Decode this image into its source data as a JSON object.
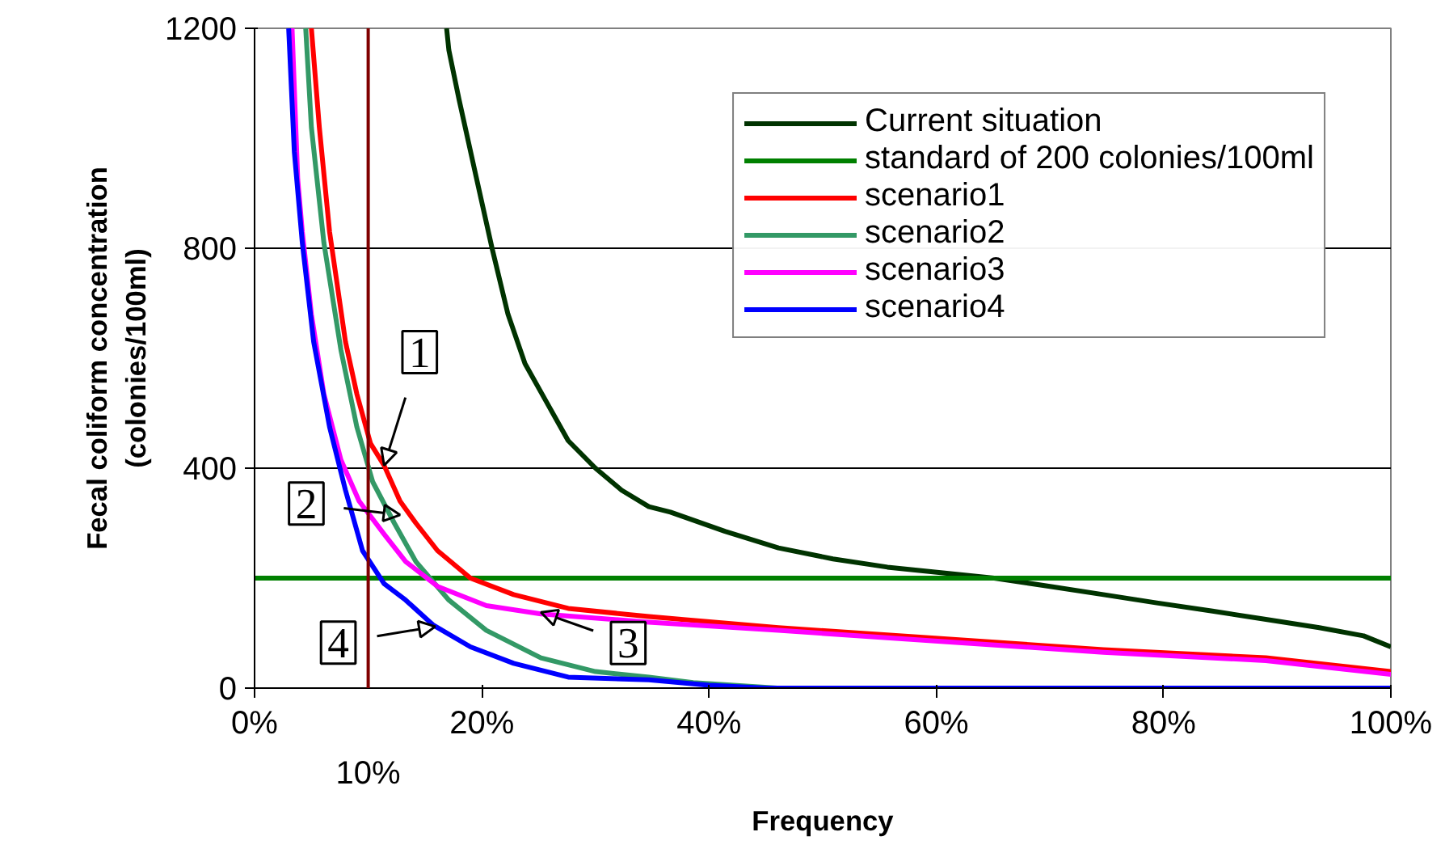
{
  "chart_data": {
    "type": "line",
    "xlabel": "Frequency",
    "ylabel": "Fecal coliform concentration\n(colonies/100ml)",
    "xlim": [
      0,
      100
    ],
    "ylim": [
      0,
      1200
    ],
    "xticks": [
      {
        "value": 0,
        "label": "0%"
      },
      {
        "value": 20,
        "label": "20%"
      },
      {
        "value": 40,
        "label": "40%"
      },
      {
        "value": 60,
        "label": "60%"
      },
      {
        "value": 80,
        "label": "80%"
      },
      {
        "value": 100,
        "label": "100%"
      }
    ],
    "yticks": [
      0,
      400,
      800,
      1200
    ],
    "grid": "y",
    "legend": "top right",
    "line_style": "solid",
    "marker": "none",
    "series": [
      {
        "name": "Current situation",
        "color": "#003300",
        "x": [
          16.9,
          17.1,
          18.0,
          19.5,
          20.9,
          22.3,
          23.8,
          25.7,
          27.6,
          30.0,
          32.3,
          34.7,
          36.6,
          41.4,
          46.1,
          50.9,
          55.7,
          60.4,
          65.1,
          70,
          74.7,
          79.4,
          84.3,
          89,
          93.7,
          97.6,
          100
        ],
        "values": [
          1200,
          1160,
          1070,
          930,
          800,
          680,
          590,
          520,
          450,
          400,
          360,
          330,
          320,
          285,
          255,
          235,
          220,
          210,
          200,
          185,
          170,
          155,
          140,
          125,
          110,
          95,
          75
        ]
      },
      {
        "name": "standard of 200 colonies/100ml",
        "color": "#008000",
        "x": [
          0,
          100
        ],
        "values": [
          200,
          200
        ]
      },
      {
        "name": "scenario1",
        "color": "#ff0000",
        "x": [
          5.0,
          5.7,
          6.6,
          8.0,
          9.0,
          10.2,
          11.4,
          12.8,
          14.2,
          16.1,
          19.0,
          22.8,
          27.6,
          34.7,
          46.1,
          60.4,
          74.7,
          89,
          100
        ],
        "values": [
          1200,
          1020,
          830,
          630,
          535,
          445,
          405,
          340,
          300,
          250,
          200,
          170,
          145,
          130,
          110,
          90,
          70,
          55,
          30
        ]
      },
      {
        "name": "scenario2",
        "color": "#339966",
        "x": [
          4.5,
          5.0,
          6.1,
          7.6,
          9.0,
          10.4,
          12.3,
          14.2,
          17.1,
          20.4,
          25.2,
          30,
          34.7,
          38.6,
          46
        ],
        "values": [
          1200,
          1020,
          810,
          615,
          475,
          375,
          300,
          230,
          160,
          105,
          55,
          30,
          20,
          10,
          0
        ]
      },
      {
        "name": "scenario3",
        "color": "#ff00ff",
        "x": [
          3.3,
          3.8,
          4.2,
          5.0,
          6.1,
          7.6,
          9.2,
          11.4,
          13.3,
          16.1,
          20.4,
          25.2,
          34.7,
          46.1,
          60.4,
          74.7,
          89,
          100
        ],
        "values": [
          1200,
          925,
          830,
          680,
          535,
          415,
          340,
          280,
          230,
          185,
          150,
          135,
          120,
          105,
          85,
          65,
          50,
          25
        ]
      },
      {
        "name": "scenario4",
        "color": "#0000ff",
        "x": [
          3.0,
          3.5,
          4.2,
          5.2,
          6.6,
          8.0,
          9.5,
          11.4,
          13.3,
          15.7,
          19.0,
          22.8,
          27.6,
          34.7,
          40,
          45,
          100
        ],
        "values": [
          1200,
          975,
          810,
          630,
          475,
          360,
          250,
          190,
          160,
          115,
          75,
          45,
          20,
          15,
          5,
          0,
          0
        ]
      }
    ],
    "ref_lines": [
      {
        "axis": "x",
        "value": 10,
        "label": "10%",
        "color": "#800000"
      }
    ],
    "annotations": [
      {
        "text": "1",
        "x": 11.4,
        "y": 405
      },
      {
        "text": "2",
        "x": 12.8,
        "y": 315
      },
      {
        "text": "3",
        "x": 25.2,
        "y": 138
      },
      {
        "text": "4",
        "x": 15.9,
        "y": 112
      }
    ]
  }
}
